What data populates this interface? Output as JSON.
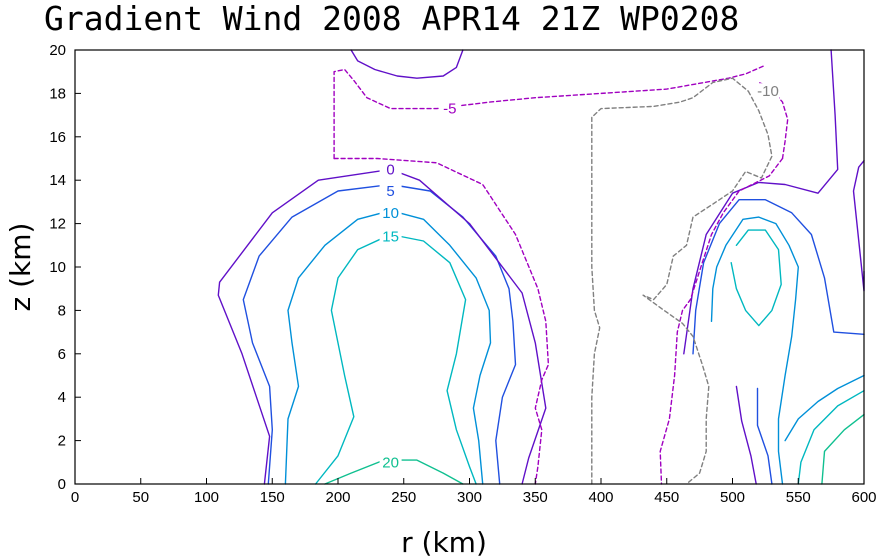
{
  "chart_data": {
    "type": "contour",
    "title": "Gradient Wind 2008 APR14 21Z  WP0208",
    "xlabel": "r (km)",
    "ylabel": "z (km)",
    "xlim": [
      0,
      600
    ],
    "ylim": [
      0,
      20
    ],
    "xticks": [
      "0",
      "50",
      "100",
      "150",
      "200",
      "250",
      "300",
      "350",
      "400",
      "450",
      "500",
      "550",
      "600"
    ],
    "yticks": [
      "0",
      "2",
      "4",
      "6",
      "8",
      "10",
      "12",
      "14",
      "16",
      "18",
      "20"
    ],
    "grid": false,
    "series": [
      {
        "level": "20",
        "color": "#10c090",
        "dashed": false,
        "label_at": [
          240,
          1.0
        ],
        "lines": [
          [
            [
              190,
              0
            ],
            [
              210,
              0.5
            ],
            [
              235,
              1.1
            ],
            [
              260,
              1.1
            ],
            [
              280,
              0.5
            ],
            [
              295,
              0
            ]
          ],
          [
            [
              568,
              0
            ],
            [
              570,
              1.5
            ],
            [
              585,
              2.5
            ],
            [
              600,
              3.2
            ]
          ]
        ]
      },
      {
        "level": "15",
        "color": "#00b8c0",
        "dashed": false,
        "label_at": [
          240,
          11.4
        ],
        "lines": [
          [
            [
              183,
              0
            ],
            [
              200,
              1.3
            ],
            [
              212,
              3.1
            ],
            [
              205,
              5.0
            ],
            [
              195,
              8.0
            ],
            [
              200,
              9.5
            ],
            [
              215,
              10.8
            ],
            [
              240,
              11.5
            ],
            [
              265,
              11.2
            ],
            [
              285,
              10.2
            ],
            [
              297,
              8.5
            ],
            [
              290,
              6.0
            ],
            [
              283,
              4.3
            ],
            [
              290,
              2.5
            ],
            [
              300,
              0.8
            ],
            [
              305,
              0
            ]
          ],
          [
            [
              499,
              10.2
            ],
            [
              503,
              9
            ],
            [
              510,
              8
            ],
            [
              520,
              7.3
            ],
            [
              530,
              8
            ],
            [
              537,
              9.2
            ],
            [
              535,
              10.8
            ],
            [
              525,
              11.7
            ],
            [
              512,
              11.7
            ],
            [
              503,
              11
            ]
          ],
          [
            [
              550,
              0
            ],
            [
              552,
              1
            ],
            [
              562,
              2.5
            ],
            [
              580,
              3.6
            ],
            [
              600,
              4.3
            ]
          ]
        ]
      },
      {
        "level": "10",
        "color": "#0090d8",
        "dashed": false,
        "label_at": [
          240,
          12.5
        ],
        "lines": [
          [
            [
              160,
              0
            ],
            [
              162,
              3
            ],
            [
              170,
              4.5
            ],
            [
              165,
              6.5
            ],
            [
              162,
              8
            ],
            [
              170,
              9.5
            ],
            [
              190,
              11
            ],
            [
              215,
              12.2
            ],
            [
              240,
              12.6
            ],
            [
              265,
              12.2
            ],
            [
              285,
              11
            ],
            [
              305,
              9.5
            ],
            [
              315,
              8
            ],
            [
              316,
              6.5
            ],
            [
              308,
              5
            ],
            [
              303,
              3.5
            ],
            [
              307,
              2
            ],
            [
              310,
              0
            ]
          ],
          [
            [
              484,
              7.5
            ],
            [
              485,
              9
            ],
            [
              488,
              10
            ],
            [
              495,
              11
            ],
            [
              508,
              12.2
            ],
            [
              520,
              12.3
            ],
            [
              533,
              12
            ],
            [
              543,
              11
            ],
            [
              550,
              10
            ],
            [
              548,
              8.5
            ],
            [
              545,
              6.8
            ],
            [
              540,
              5
            ],
            [
              535,
              3
            ],
            [
              535,
              1.5
            ],
            [
              538,
              0
            ]
          ],
          [
            [
              540,
              2
            ],
            [
              550,
              3
            ],
            [
              565,
              3.8
            ],
            [
              580,
              4.4
            ],
            [
              600,
              5
            ]
          ]
        ]
      },
      {
        "level": "5",
        "color": "#2050e0",
        "dashed": false,
        "label_at": [
          240,
          13.5
        ],
        "lines": [
          [
            [
              147,
              0
            ],
            [
              150,
              2.5
            ],
            [
              148,
              4.5
            ],
            [
              135,
              6.5
            ],
            [
              128,
              8.5
            ],
            [
              140,
              10.5
            ],
            [
              165,
              12.3
            ],
            [
              200,
              13.5
            ],
            [
              240,
              13.8
            ],
            [
              270,
              13.5
            ],
            [
              295,
              12.3
            ],
            [
              320,
              10.5
            ],
            [
              330,
              9
            ],
            [
              333,
              7.5
            ],
            [
              335,
              5.5
            ],
            [
              325,
              4
            ],
            [
              320,
              2
            ],
            [
              323,
              0
            ]
          ],
          [
            [
              470,
              6
            ],
            [
              472,
              8
            ],
            [
              478,
              10.2
            ],
            [
              490,
              12
            ],
            [
              505,
              13.1
            ],
            [
              525,
              13.1
            ],
            [
              545,
              12.5
            ],
            [
              560,
              11.5
            ],
            [
              570,
              9.5
            ],
            [
              577,
              7
            ],
            [
              600,
              6.9
            ]
          ],
          [
            [
              530,
              0
            ],
            [
              527,
              1.3
            ],
            [
              519,
              2.7
            ],
            [
              519,
              4.4
            ]
          ]
        ]
      },
      {
        "level": "0",
        "color": "#6010c8",
        "dashed": false,
        "label_at": [
          240,
          14.5
        ],
        "lines": [
          [
            [
              144,
              0
            ],
            [
              148,
              2.2
            ],
            [
              138,
              4.0
            ],
            [
              127,
              6.0
            ],
            [
              109,
              8.7
            ],
            [
              110,
              9.3
            ],
            [
              150,
              12.5
            ],
            [
              185,
              14.0
            ],
            [
              240,
              14.5
            ],
            [
              262,
              14.0
            ],
            [
              300,
              12.0
            ],
            [
              340,
              8.8
            ],
            [
              350,
              6.5
            ],
            [
              358,
              3.5
            ],
            [
              345,
              1.2
            ],
            [
              340,
              0
            ]
          ],
          [
            [
              295,
              20
            ],
            [
              290,
              19.2
            ],
            [
              280,
              18.8
            ],
            [
              260,
              18.7
            ],
            [
              245,
              18.8
            ],
            [
              228,
              19.1
            ],
            [
              215,
              19.5
            ],
            [
              210,
              20
            ]
          ],
          [
            [
              463,
              6
            ],
            [
              470,
              9
            ],
            [
              480,
              11.5
            ],
            [
              500,
              13.4
            ],
            [
              520,
              13.9
            ],
            [
              540,
              13.8
            ],
            [
              565,
              13.4
            ],
            [
              580,
              14.5
            ],
            [
              578,
              17
            ],
            [
              575,
              20
            ]
          ],
          [
            [
              600,
              9.8
            ],
            [
              600,
              8.9
            ],
            [
              595,
              11.8
            ],
            [
              592,
              13.5
            ],
            [
              596,
              14.6
            ],
            [
              600,
              14.9
            ]
          ],
          [
            [
              518,
              0
            ],
            [
              514,
              1.3
            ],
            [
              507,
              2.9
            ],
            [
              503,
              4.5
            ]
          ]
        ]
      },
      {
        "level": "-5",
        "color": "#a000c0",
        "dashed": true,
        "label_at": [
          285,
          17.3
        ],
        "lines": [
          [
            [
              197,
              15
            ],
            [
              197,
              19
            ],
            [
              205,
              19.1
            ],
            [
              212,
              18.6
            ],
            [
              222,
              17.8
            ],
            [
              240,
              17.3
            ],
            [
              275,
              17.3
            ],
            [
              315,
              17.6
            ],
            [
              350,
              17.8
            ],
            [
              400,
              18.0
            ],
            [
              450,
              18.2
            ],
            [
              497,
              18.7
            ],
            [
              510,
              18.9
            ],
            [
              525,
              19.3
            ]
          ],
          [
            [
              538,
              15
            ],
            [
              540,
              15.8
            ],
            [
              542,
              16.8
            ],
            [
              538,
              17.6
            ],
            [
              528,
              18.3
            ],
            [
              520,
              18.5
            ]
          ],
          [
            [
              197,
              15
            ],
            [
              230,
              15
            ],
            [
              275,
              14.8
            ],
            [
              310,
              13.8
            ],
            [
              335,
              11.5
            ],
            [
              352,
              9.0
            ],
            [
              358,
              7.5
            ],
            [
              360,
              5.5
            ],
            [
              355,
              4.8
            ],
            [
              350,
              3.5
            ],
            [
              355,
              2.5
            ],
            [
              352,
              0.8
            ],
            [
              350,
              0
            ]
          ],
          [
            [
              538,
              15
            ],
            [
              528,
              14.2
            ],
            [
              505,
              13.5
            ],
            [
              493,
              12.5
            ],
            [
              484,
              11.5
            ],
            [
              477,
              10.2
            ],
            [
              468,
              8.5
            ],
            [
              462,
              8
            ],
            [
              458,
              7
            ],
            [
              456,
              5
            ],
            [
              452,
              3
            ],
            [
              445,
              1.5
            ],
            [
              446,
              0
            ]
          ]
        ]
      },
      {
        "level": "-10",
        "color": "#808080",
        "dashed": true,
        "label_at": [
          527,
          18.1
        ],
        "lines": [
          [
            [
              393,
              0
            ],
            [
              393,
              4
            ],
            [
              395,
              6
            ],
            [
              399,
              7.2
            ],
            [
              395,
              8
            ],
            [
              393,
              10
            ],
            [
              393,
              13
            ],
            [
              393,
              15
            ],
            [
              393,
              16.9
            ],
            [
              400,
              17.3
            ],
            [
              440,
              17.4
            ],
            [
              460,
              17.6
            ],
            [
              470,
              17.8
            ],
            [
              485,
              18.5
            ],
            [
              500,
              18.7
            ],
            [
              512,
              18.1
            ]
          ],
          [
            [
              512,
              18.1
            ],
            [
              520,
              17.2
            ],
            [
              527,
              16.1
            ],
            [
              530,
              15.1
            ],
            [
              522,
              14.1
            ],
            [
              510,
              14.4
            ],
            [
              500,
              13.5
            ],
            [
              485,
              12.9
            ],
            [
              470,
              12.3
            ],
            [
              465,
              11.0
            ],
            [
              455,
              10.5
            ],
            [
              450,
              9.2
            ],
            [
              440,
              8.5
            ],
            [
              432,
              8.7
            ],
            [
              448,
              8.0
            ],
            [
              462,
              7.4
            ],
            [
              470,
              6.8
            ],
            [
              477,
              5.5
            ],
            [
              482,
              4.5
            ],
            [
              480,
              3.0
            ],
            [
              480,
              1.5
            ],
            [
              475,
              0.5
            ],
            [
              465,
              0
            ]
          ]
        ]
      }
    ]
  }
}
